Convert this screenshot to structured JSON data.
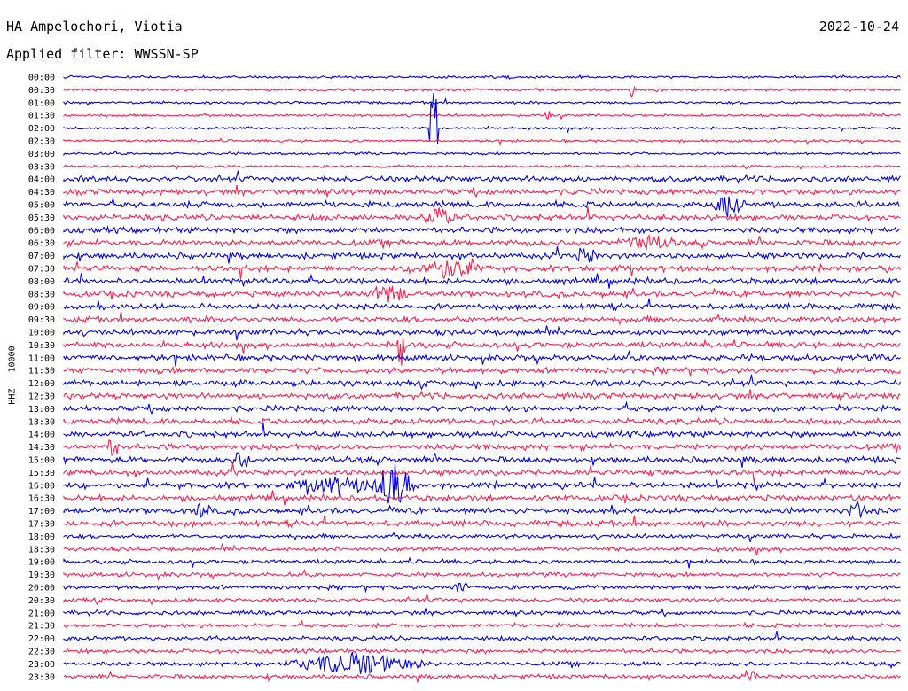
{
  "header": {
    "station": "HA Ampelochori, Viotia",
    "filter": "Applied filter: WWSSN-SP",
    "date": "2022-10-24",
    "channel": "HHZ - 10000"
  },
  "colors": {
    "trace_a": "#0000ee",
    "trace_b": "#ff1e4e",
    "text": "#000000"
  },
  "chart_data": {
    "type": "line",
    "title": "HA Ampelochori, Viotia",
    "subtitle": "Applied filter: WWSSN-SP",
    "ylabel": "HHZ - 10000",
    "xlabel": "",
    "rows": [
      "00:00",
      "00:30",
      "01:00",
      "01:30",
      "02:00",
      "02:30",
      "03:00",
      "03:30",
      "04:00",
      "04:30",
      "05:00",
      "05:30",
      "06:00",
      "06:30",
      "07:00",
      "07:30",
      "08:00",
      "08:30",
      "09:00",
      "09:30",
      "10:00",
      "10:30",
      "11:00",
      "11:30",
      "12:00",
      "12:30",
      "13:00",
      "13:30",
      "14:00",
      "14:30",
      "15:00",
      "15:30",
      "16:00",
      "16:30",
      "17:00",
      "17:30",
      "18:00",
      "18:30",
      "19:00",
      "19:30",
      "20:00",
      "20:30",
      "21:00",
      "21:30",
      "22:00",
      "22:30",
      "23:00",
      "23:30"
    ],
    "series_colors": [
      "#0000ee",
      "#ff1e4e"
    ],
    "grid": false,
    "legend": "none"
  }
}
